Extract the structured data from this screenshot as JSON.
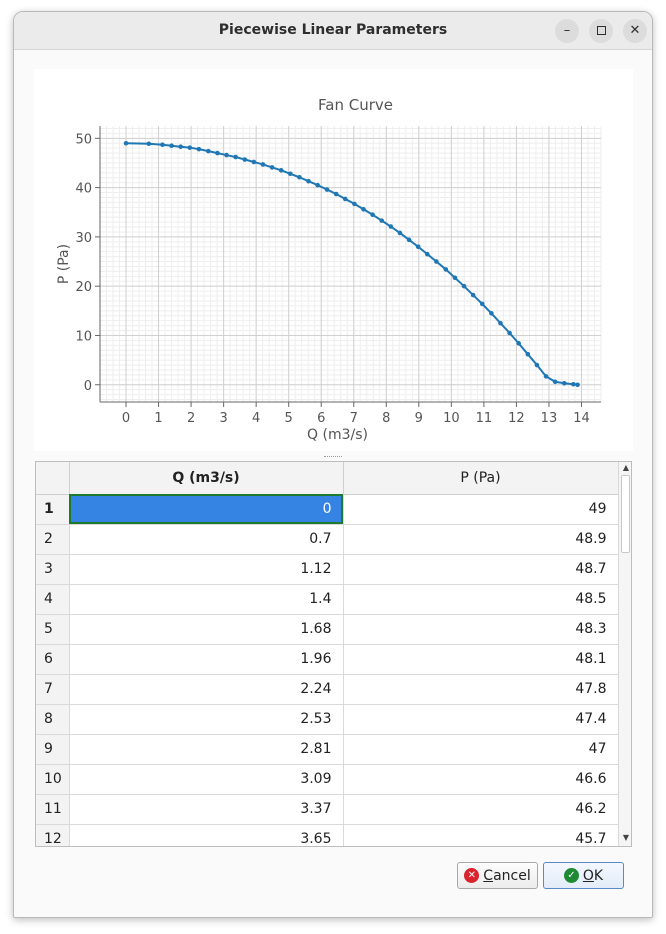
{
  "window": {
    "title": "Piecewise Linear Parameters",
    "buttons": {
      "minimize": "–",
      "close": "✕"
    }
  },
  "chart_data": {
    "type": "line",
    "title": "Fan Curve",
    "xlabel": "Q (m3/s)",
    "ylabel": "P (Pa)",
    "xlim": [
      -0.8,
      14.6
    ],
    "ylim": [
      -3.5,
      52.5
    ],
    "xticks": [
      0,
      1,
      2,
      3,
      4,
      5,
      6,
      7,
      8,
      9,
      10,
      11,
      12,
      13,
      14
    ],
    "yticks": [
      0,
      10,
      20,
      30,
      40,
      50
    ],
    "grid": true,
    "color": "#1f77b4",
    "x": [
      0,
      0.7,
      1.12,
      1.4,
      1.68,
      1.96,
      2.24,
      2.53,
      2.81,
      3.09,
      3.37,
      3.65,
      3.93,
      4.21,
      4.49,
      4.77,
      5.05,
      5.33,
      5.61,
      5.89,
      6.18,
      6.46,
      6.74,
      7.02,
      7.3,
      7.58,
      7.86,
      8.14,
      8.42,
      8.7,
      8.98,
      9.26,
      9.54,
      9.83,
      10.11,
      10.39,
      10.67,
      10.95,
      11.23,
      11.51,
      11.79,
      12.07,
      12.35,
      12.63,
      12.91,
      13.19,
      13.47,
      13.75,
      13.88
    ],
    "y": [
      49,
      48.9,
      48.7,
      48.5,
      48.3,
      48.1,
      47.8,
      47.4,
      47,
      46.6,
      46.2,
      45.7,
      45.2,
      44.7,
      44.1,
      43.5,
      42.8,
      42.1,
      41.3,
      40.5,
      39.6,
      38.7,
      37.7,
      36.7,
      35.6,
      34.5,
      33.3,
      32.1,
      30.8,
      29.4,
      28,
      26.5,
      25,
      23.4,
      21.7,
      20,
      18.2,
      16.4,
      14.5,
      12.5,
      10.5,
      8.4,
      6.2,
      4.0,
      1.7,
      0.6,
      0.3,
      0.1,
      0
    ]
  },
  "table": {
    "headers": [
      "Q (m3/s)",
      "P (Pa)"
    ],
    "rows": [
      {
        "n": "1",
        "q": "0",
        "p": "49"
      },
      {
        "n": "2",
        "q": "0.7",
        "p": "48.9"
      },
      {
        "n": "3",
        "q": "1.12",
        "p": "48.7"
      },
      {
        "n": "4",
        "q": "1.4",
        "p": "48.5"
      },
      {
        "n": "5",
        "q": "1.68",
        "p": "48.3"
      },
      {
        "n": "6",
        "q": "1.96",
        "p": "48.1"
      },
      {
        "n": "7",
        "q": "2.24",
        "p": "47.8"
      },
      {
        "n": "8",
        "q": "2.53",
        "p": "47.4"
      },
      {
        "n": "9",
        "q": "2.81",
        "p": "47"
      },
      {
        "n": "10",
        "q": "3.09",
        "p": "46.6"
      },
      {
        "n": "11",
        "q": "3.37",
        "p": "46.2"
      },
      {
        "n": "12",
        "q": "3.65",
        "p": "45.7"
      }
    ]
  },
  "buttons": {
    "cancel_prefix": "",
    "cancel_underlined": "C",
    "cancel_rest": "ancel",
    "ok_underlined": "O",
    "ok_rest": "K"
  }
}
